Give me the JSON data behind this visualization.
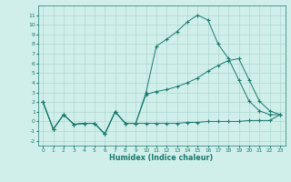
{
  "line1_x": [
    0,
    1,
    2,
    3,
    4,
    5,
    6,
    7,
    8,
    9,
    10,
    11,
    12,
    13,
    14,
    15,
    16,
    17,
    18,
    19,
    20,
    21,
    22,
    23
  ],
  "line1_y": [
    2,
    -0.8,
    0.7,
    -0.3,
    -0.2,
    -0.2,
    -1.3,
    1.0,
    -0.2,
    -0.2,
    3.0,
    7.8,
    8.5,
    9.3,
    10.3,
    11.0,
    10.5,
    8.0,
    6.5,
    4.3,
    2.1,
    1.1,
    0.7,
    0.7
  ],
  "line2_x": [
    0,
    1,
    2,
    3,
    4,
    5,
    6,
    7,
    8,
    9,
    10,
    11,
    12,
    13,
    14,
    15,
    16,
    17,
    18,
    19,
    20,
    21,
    22,
    23
  ],
  "line2_y": [
    2,
    -0.8,
    0.7,
    -0.3,
    -0.2,
    -0.2,
    -1.3,
    1.0,
    -0.2,
    -0.2,
    2.8,
    3.1,
    3.3,
    3.6,
    4.0,
    4.5,
    5.2,
    5.8,
    6.3,
    6.5,
    4.3,
    2.1,
    1.1,
    0.7
  ],
  "line3_x": [
    0,
    1,
    2,
    3,
    4,
    5,
    6,
    7,
    8,
    9,
    10,
    11,
    12,
    13,
    14,
    15,
    16,
    17,
    18,
    19,
    20,
    21,
    22,
    23
  ],
  "line3_y": [
    2,
    -0.8,
    0.7,
    -0.3,
    -0.2,
    -0.2,
    -1.3,
    1.0,
    -0.2,
    -0.2,
    -0.2,
    -0.2,
    -0.2,
    -0.2,
    -0.1,
    -0.1,
    0.0,
    0.0,
    0.0,
    0.0,
    0.1,
    0.1,
    0.1,
    0.7
  ],
  "line_color": "#1a7a6e",
  "bg_color": "#d0eeea",
  "grid_color": "#b0d8d3",
  "xlabel": "Humidex (Indice chaleur)",
  "xlim": [
    -0.5,
    23.5
  ],
  "ylim": [
    -2.5,
    12
  ],
  "yticks": [
    -2,
    -1,
    0,
    1,
    2,
    3,
    4,
    5,
    6,
    7,
    8,
    9,
    10,
    11
  ],
  "xticks": [
    0,
    1,
    2,
    3,
    4,
    5,
    6,
    7,
    8,
    9,
    10,
    11,
    12,
    13,
    14,
    15,
    16,
    17,
    18,
    19,
    20,
    21,
    22,
    23
  ]
}
